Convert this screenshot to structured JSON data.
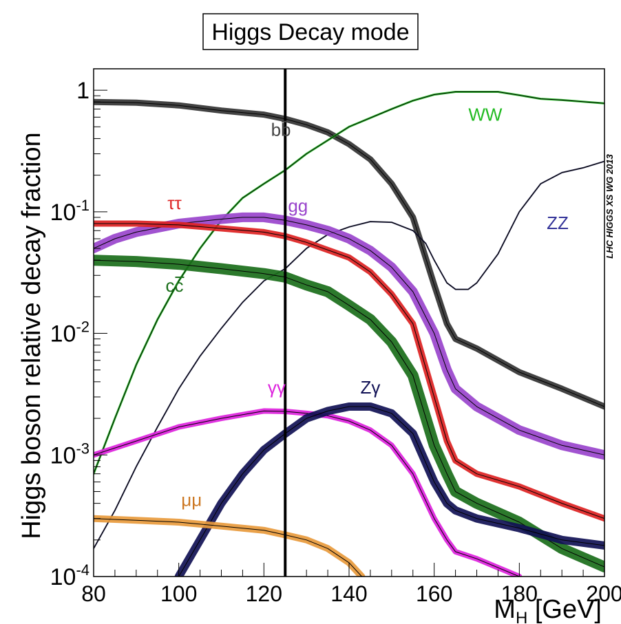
{
  "chart_data": {
    "type": "line",
    "title": "Higgs Decay mode",
    "xlabel": "M_H [GeV]",
    "ylabel": "Higgs boson relative decay fraction",
    "watermark": "LHC HIGGS XS WG 2013",
    "xlim": [
      80,
      200
    ],
    "ylim": [
      0.0001,
      1.5
    ],
    "y_scale": "log",
    "x_ticks": [
      80,
      100,
      120,
      140,
      160,
      180,
      200
    ],
    "y_ticks": [
      {
        "value": 1,
        "base": "1",
        "exp": ""
      },
      {
        "value": 0.1,
        "base": "10",
        "exp": "-1"
      },
      {
        "value": 0.01,
        "base": "10",
        "exp": "-2"
      },
      {
        "value": 0.001,
        "base": "10",
        "exp": "-3"
      },
      {
        "value": 0.0001,
        "base": "10",
        "exp": "-4"
      }
    ],
    "marker_line_x": 125,
    "grid": false,
    "series": [
      {
        "name": "bb",
        "color": "#333333",
        "band": 9,
        "points": [
          [
            80,
            0.8
          ],
          [
            90,
            0.79
          ],
          [
            100,
            0.75
          ],
          [
            110,
            0.68
          ],
          [
            120,
            0.63
          ],
          [
            125,
            0.58
          ],
          [
            130,
            0.52
          ],
          [
            135,
            0.45
          ],
          [
            140,
            0.36
          ],
          [
            145,
            0.27
          ],
          [
            150,
            0.17
          ],
          [
            155,
            0.09
          ],
          [
            160,
            0.025
          ],
          [
            163,
            0.012
          ],
          [
            165,
            0.009
          ],
          [
            170,
            0.0075
          ],
          [
            180,
            0.0048
          ],
          [
            190,
            0.0035
          ],
          [
            200,
            0.0025
          ]
        ]
      },
      {
        "name": "WW",
        "color": "#22bb22",
        "band": 3,
        "points": [
          [
            80,
            0.0007
          ],
          [
            85,
            0.002
          ],
          [
            90,
            0.0055
          ],
          [
            95,
            0.013
          ],
          [
            100,
            0.027
          ],
          [
            105,
            0.05
          ],
          [
            110,
            0.085
          ],
          [
            115,
            0.13
          ],
          [
            120,
            0.17
          ],
          [
            125,
            0.22
          ],
          [
            130,
            0.3
          ],
          [
            140,
            0.5
          ],
          [
            150,
            0.7
          ],
          [
            155,
            0.82
          ],
          [
            160,
            0.92
          ],
          [
            165,
            0.97
          ],
          [
            170,
            0.97
          ],
          [
            175,
            0.97
          ],
          [
            180,
            0.91
          ],
          [
            185,
            0.85
          ],
          [
            190,
            0.83
          ],
          [
            200,
            0.78
          ]
        ]
      },
      {
        "name": "ZZ",
        "color": "#222255",
        "band": 2,
        "points": [
          [
            80,
            0.00017
          ],
          [
            85,
            0.00035
          ],
          [
            90,
            0.0008
          ],
          [
            95,
            0.0017
          ],
          [
            100,
            0.0035
          ],
          [
            105,
            0.0065
          ],
          [
            110,
            0.011
          ],
          [
            115,
            0.018
          ],
          [
            120,
            0.027
          ],
          [
            125,
            0.034
          ],
          [
            130,
            0.05
          ],
          [
            135,
            0.065
          ],
          [
            140,
            0.075
          ],
          [
            145,
            0.083
          ],
          [
            150,
            0.082
          ],
          [
            155,
            0.07
          ],
          [
            158,
            0.055
          ],
          [
            160,
            0.04
          ],
          [
            163,
            0.026
          ],
          [
            165,
            0.023
          ],
          [
            168,
            0.023
          ],
          [
            170,
            0.026
          ],
          [
            175,
            0.045
          ],
          [
            180,
            0.1
          ],
          [
            185,
            0.17
          ],
          [
            190,
            0.21
          ],
          [
            195,
            0.23
          ],
          [
            200,
            0.26
          ]
        ]
      },
      {
        "name": "gg",
        "color": "#9944cc",
        "band": 14,
        "points": [
          [
            80,
            0.05
          ],
          [
            85,
            0.06
          ],
          [
            90,
            0.068
          ],
          [
            100,
            0.08
          ],
          [
            110,
            0.087
          ],
          [
            115,
            0.09
          ],
          [
            120,
            0.09
          ],
          [
            125,
            0.085
          ],
          [
            130,
            0.078
          ],
          [
            135,
            0.07
          ],
          [
            140,
            0.06
          ],
          [
            145,
            0.048
          ],
          [
            150,
            0.035
          ],
          [
            155,
            0.022
          ],
          [
            160,
            0.01
          ],
          [
            163,
            0.005
          ],
          [
            165,
            0.0035
          ],
          [
            170,
            0.0025
          ],
          [
            180,
            0.0016
          ],
          [
            190,
            0.0012
          ],
          [
            200,
            0.001
          ]
        ]
      },
      {
        "name": "ττ",
        "color": "#dd2222",
        "band": 9,
        "points": [
          [
            80,
            0.08
          ],
          [
            90,
            0.08
          ],
          [
            100,
            0.078
          ],
          [
            110,
            0.073
          ],
          [
            120,
            0.068
          ],
          [
            125,
            0.063
          ],
          [
            130,
            0.056
          ],
          [
            140,
            0.042
          ],
          [
            145,
            0.032
          ],
          [
            150,
            0.021
          ],
          [
            155,
            0.012
          ],
          [
            160,
            0.003
          ],
          [
            163,
            0.0013
          ],
          [
            165,
            0.0009
          ],
          [
            170,
            0.0007
          ],
          [
            180,
            0.00055
          ],
          [
            190,
            0.0004
          ],
          [
            200,
            0.0003
          ]
        ]
      },
      {
        "name": "cc",
        "color": "#1a6e1a",
        "band": 16,
        "points": [
          [
            80,
            0.04
          ],
          [
            90,
            0.039
          ],
          [
            100,
            0.037
          ],
          [
            110,
            0.034
          ],
          [
            120,
            0.031
          ],
          [
            125,
            0.029
          ],
          [
            130,
            0.025
          ],
          [
            135,
            0.022
          ],
          [
            140,
            0.017
          ],
          [
            145,
            0.013
          ],
          [
            150,
            0.0085
          ],
          [
            155,
            0.0045
          ],
          [
            160,
            0.0012
          ],
          [
            163,
            0.0007
          ],
          [
            165,
            0.0005
          ],
          [
            170,
            0.0004
          ],
          [
            180,
            0.00028
          ],
          [
            190,
            0.00017
          ],
          [
            200,
            0.00012
          ]
        ]
      },
      {
        "name": "γγ",
        "color": "#dd22dd",
        "band": 8,
        "points": [
          [
            80,
            0.001
          ],
          [
            90,
            0.0013
          ],
          [
            100,
            0.0017
          ],
          [
            110,
            0.002
          ],
          [
            120,
            0.0023
          ],
          [
            125,
            0.00228
          ],
          [
            130,
            0.0022
          ],
          [
            135,
            0.0021
          ],
          [
            140,
            0.0019
          ],
          [
            145,
            0.0016
          ],
          [
            150,
            0.0012
          ],
          [
            155,
            0.0007
          ],
          [
            160,
            0.0003
          ],
          [
            163,
            0.0002
          ],
          [
            165,
            0.00016
          ],
          [
            170,
            0.00014
          ],
          [
            180,
            0.0001
          ]
        ]
      },
      {
        "name": "Zγ",
        "color": "#111155",
        "band": 12,
        "points": [
          [
            100,
            0.0001
          ],
          [
            105,
            0.0002
          ],
          [
            110,
            0.0004
          ],
          [
            115,
            0.0007
          ],
          [
            120,
            0.0011
          ],
          [
            125,
            0.0015
          ],
          [
            130,
            0.002
          ],
          [
            135,
            0.0023
          ],
          [
            140,
            0.0025
          ],
          [
            145,
            0.0025
          ],
          [
            150,
            0.0022
          ],
          [
            155,
            0.0015
          ],
          [
            160,
            0.0006
          ],
          [
            163,
            0.0004
          ],
          [
            165,
            0.00035
          ],
          [
            170,
            0.0003
          ],
          [
            180,
            0.00025
          ],
          [
            190,
            0.0002
          ],
          [
            200,
            0.00018
          ]
        ]
      },
      {
        "name": "μμ",
        "color": "#e89a3c",
        "band": 10,
        "points": [
          [
            80,
            0.0003
          ],
          [
            90,
            0.00029
          ],
          [
            100,
            0.00028
          ],
          [
            110,
            0.00026
          ],
          [
            120,
            0.00024
          ],
          [
            125,
            0.00022
          ],
          [
            130,
            0.0002
          ],
          [
            135,
            0.00017
          ],
          [
            140,
            0.00013
          ],
          [
            143,
            0.0001
          ]
        ]
      }
    ],
    "labels": [
      {
        "series": "bb",
        "text": "bb",
        "color": "#444444",
        "overbar": true,
        "x": 124,
        "y": 0.42
      },
      {
        "series": "WW",
        "text": "WW",
        "color": "#22bb22",
        "overbar": false,
        "x": 172,
        "y": 0.56
      },
      {
        "series": "ZZ",
        "text": "ZZ",
        "color": "#333399",
        "overbar": false,
        "x": 189,
        "y": 0.072
      },
      {
        "series": "gg",
        "text": "gg",
        "color": "#9944cc",
        "overbar": false,
        "x": 128,
        "y": 0.1
      },
      {
        "series": "ττ",
        "text": "ττ",
        "color": "#dd2222",
        "overbar": false,
        "x": 99,
        "y": 0.105
      },
      {
        "series": "cc",
        "text": "cc",
        "color": "#1a6e1a",
        "overbar": true,
        "x": 99,
        "y": 0.022
      },
      {
        "series": "γγ",
        "text": "γγ",
        "color": "#dd22dd",
        "overbar": false,
        "x": 123,
        "y": 0.0032
      },
      {
        "series": "Zγ",
        "text": "Zγ",
        "color": "#111155",
        "overbar": false,
        "x": 145,
        "y": 0.0032
      },
      {
        "series": "μμ",
        "text": "μμ",
        "color": "#cc7722",
        "overbar": false,
        "x": 103,
        "y": 0.00038
      }
    ]
  }
}
